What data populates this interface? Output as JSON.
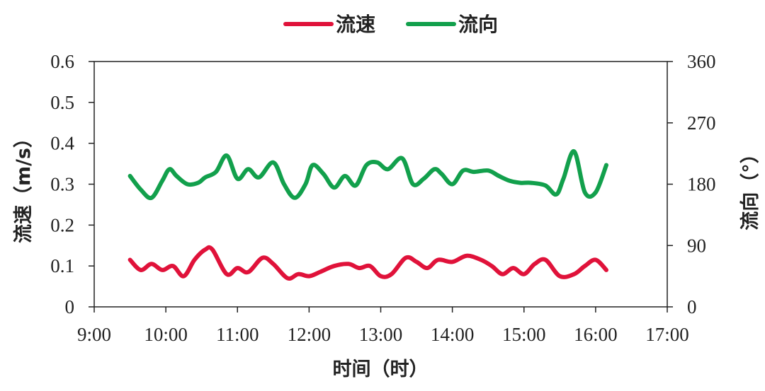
{
  "chart_data": {
    "type": "line",
    "xlabel": "时间（时）",
    "ylabel_left": "流速（m/s）",
    "ylabel_right": "流向（°）",
    "x_ticks": [
      "9:00",
      "10:00",
      "11:00",
      "12:00",
      "13:00",
      "14:00",
      "15:00",
      "16:00",
      "17:00"
    ],
    "xlim": [
      9,
      17
    ],
    "y_left_ticks": [
      "0",
      "0.1",
      "0.2",
      "0.3",
      "0.4",
      "0.5",
      "0.6"
    ],
    "ylim_left": [
      0,
      0.6
    ],
    "y_right_ticks": [
      "0",
      "90",
      "180",
      "270",
      "360"
    ],
    "ylim_right": [
      0,
      360
    ],
    "legend": "top",
    "grid": false,
    "series": [
      {
        "name": "流速",
        "axis": "left",
        "color": "#e0123a",
        "x": [
          9.5,
          9.65,
          9.8,
          9.95,
          10.1,
          10.25,
          10.4,
          10.55,
          10.65,
          10.85,
          11.0,
          11.15,
          11.35,
          11.5,
          11.7,
          11.85,
          12.0,
          12.15,
          12.35,
          12.55,
          12.7,
          12.85,
          13.0,
          13.15,
          13.35,
          13.5,
          13.65,
          13.8,
          14.0,
          14.2,
          14.4,
          14.55,
          14.7,
          14.85,
          15.0,
          15.15,
          15.3,
          15.5,
          15.7,
          15.85,
          16.0,
          16.15
        ],
        "values": [
          0.115,
          0.09,
          0.105,
          0.09,
          0.1,
          0.075,
          0.115,
          0.14,
          0.14,
          0.08,
          0.095,
          0.085,
          0.12,
          0.105,
          0.07,
          0.08,
          0.075,
          0.085,
          0.1,
          0.105,
          0.095,
          0.1,
          0.075,
          0.08,
          0.12,
          0.11,
          0.095,
          0.115,
          0.11,
          0.125,
          0.115,
          0.1,
          0.08,
          0.095,
          0.08,
          0.105,
          0.115,
          0.075,
          0.08,
          0.1,
          0.115,
          0.09
        ]
      },
      {
        "name": "流向",
        "axis": "right",
        "color": "#12a04c",
        "x": [
          9.5,
          9.65,
          9.8,
          9.95,
          10.05,
          10.15,
          10.3,
          10.45,
          10.55,
          10.7,
          10.85,
          11.0,
          11.15,
          11.3,
          11.5,
          11.65,
          11.8,
          11.95,
          12.05,
          12.2,
          12.35,
          12.5,
          12.65,
          12.8,
          12.95,
          13.1,
          13.3,
          13.45,
          13.6,
          13.75,
          13.85,
          14.0,
          14.15,
          14.3,
          14.5,
          14.65,
          14.8,
          14.95,
          15.1,
          15.3,
          15.45,
          15.55,
          15.7,
          15.85,
          16.0,
          16.15
        ],
        "values": [
          192,
          172,
          160,
          185,
          202,
          192,
          180,
          182,
          190,
          198,
          222,
          188,
          202,
          190,
          212,
          180,
          160,
          180,
          208,
          195,
          175,
          192,
          178,
          208,
          212,
          202,
          218,
          180,
          188,
          202,
          195,
          180,
          200,
          198,
          200,
          192,
          185,
          182,
          182,
          178,
          165,
          188,
          228,
          168,
          168,
          208
        ]
      }
    ]
  }
}
